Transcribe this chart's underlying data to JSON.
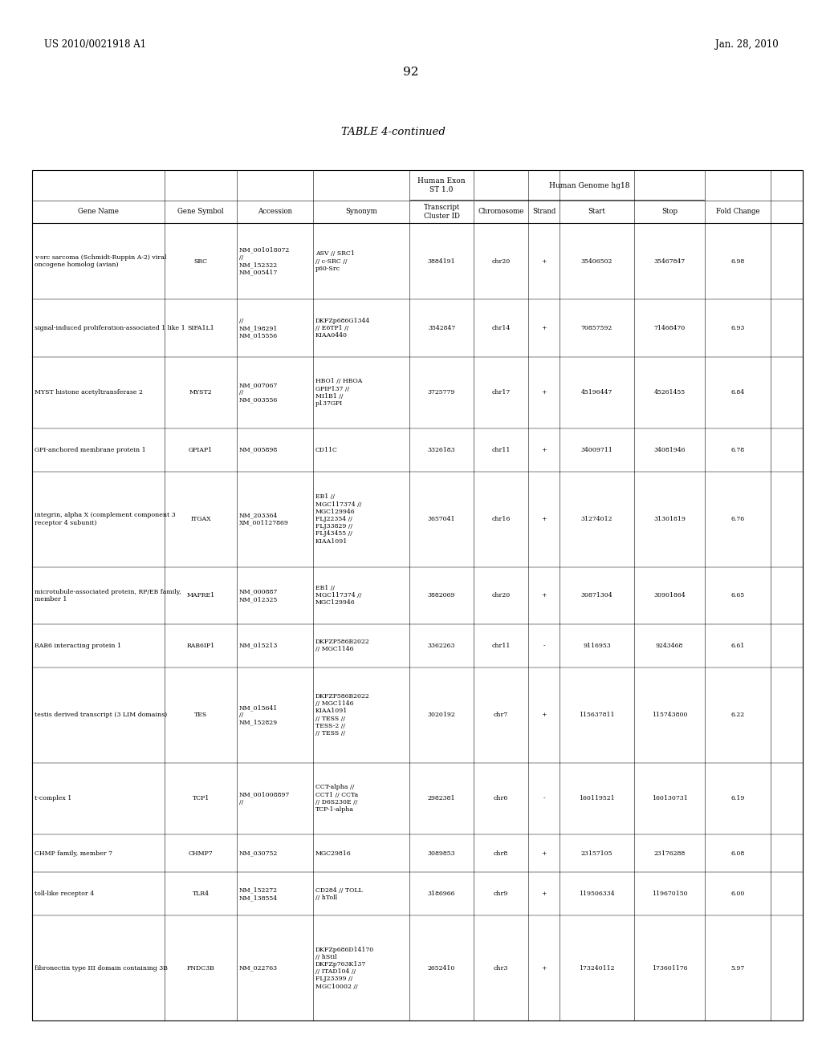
{
  "patent_number": "US 2010/0021918 A1",
  "patent_date": "Jan. 28, 2010",
  "page_number": "92",
  "table_title": "TABLE 4-continued",
  "rows": [
    {
      "gene_name": "v-src sarcoma (Schmidt-Ruppin A-2) viral\noncogene homolog (avian)",
      "gene_symbol": "SRC",
      "accession": "NM_001018072\n//\nNM_152322\nNM_005417",
      "synonym": "ASV // SRC1\n// c-SRC //\np60-Src",
      "transcript_id": "3884191",
      "chromosome": "chr20",
      "strand": "+",
      "start": "35406502",
      "stop": "35467847",
      "fold_change": "6.98"
    },
    {
      "gene_name": "signal-induced proliferation-associated 1 like 1",
      "gene_symbol": "SIPA1L1",
      "accession": "//\nNM_198291\nNM_015556",
      "synonym": "DKFZp686G1344\n// E6TP1 //\nKIAA0440",
      "transcript_id": "3542847",
      "chromosome": "chr14",
      "strand": "+",
      "start": "70857592",
      "stop": "71468470",
      "fold_change": "6.93"
    },
    {
      "gene_name": "MYST histone acetyltransferase 2",
      "gene_symbol": "MYST2",
      "accession": "NM_007067\n//\nNM_003556",
      "synonym": "HBO1 // HBOA\nGPIP137 //\nMI1B1 //\np137GPI",
      "transcript_id": "3725779",
      "chromosome": "chr17",
      "strand": "+",
      "start": "45196447",
      "stop": "45261455",
      "fold_change": "6.84"
    },
    {
      "gene_name": "GPI-anchored membrane protein 1",
      "gene_symbol": "GPIAP1",
      "accession": "NM_005898",
      "synonym": "CD11C",
      "transcript_id": "3326183",
      "chromosome": "chr11",
      "strand": "+",
      "start": "34009711",
      "stop": "34081946",
      "fold_change": "6.78"
    },
    {
      "gene_name": "integrin, alpha X (complement component 3\nreceptor 4 subunit)",
      "gene_symbol": "ITGAX",
      "accession": "NM_203364\nXM_001127869",
      "synonym": "EB1 //\nMGC117374 //\nMGC129946\nFLJ22354 //\nFLJ33829 //\nFLJ43455 //\nKIAA1091",
      "transcript_id": "3657041",
      "chromosome": "chr16",
      "strand": "+",
      "start": "31274012",
      "stop": "31301819",
      "fold_change": "6.76"
    },
    {
      "gene_name": "microtubule-associated protein, RP/EB family,\nmember 1",
      "gene_symbol": "MAPRE1",
      "accession": "NM_000887\nNM_012325",
      "synonym": "EB1 //\nMGC117374 //\nMGC129946",
      "transcript_id": "3882069",
      "chromosome": "chr20",
      "strand": "+",
      "start": "30871304",
      "stop": "30901864",
      "fold_change": "6.65"
    },
    {
      "gene_name": "RAB6 interacting protein 1",
      "gene_symbol": "RAB6IP1",
      "accession": "NM_015213",
      "synonym": "DKFZP586B2022\n// MGC1146",
      "transcript_id": "3362263",
      "chromosome": "chr11",
      "strand": "-",
      "start": "9116953",
      "stop": "9243468",
      "fold_change": "6.61"
    },
    {
      "gene_name": "testis derived transcript (3 LIM domains)",
      "gene_symbol": "TES",
      "accession": "NM_015641\n//\nNM_152829",
      "synonym": "DKFZP586B2022\n// MGC1146\nKIAA1091\n// TESS //\nTESS-2 //\n// TESS //",
      "transcript_id": "3020192",
      "chromosome": "chr7",
      "strand": "+",
      "start": "115637811",
      "stop": "115743800",
      "fold_change": "6.22"
    },
    {
      "gene_name": "t-complex 1",
      "gene_symbol": "TCP1",
      "accession": "NM_001008897\n//",
      "synonym": "CCT-alpha //\nCCT1 // CCTa\n// D6S230E //\nTCP-1-alpha",
      "transcript_id": "2982381",
      "chromosome": "chr6",
      "strand": "-",
      "start": "160119521",
      "stop": "160130731",
      "fold_change": "6.19"
    },
    {
      "gene_name": "CHMP family, member 7",
      "gene_symbol": "CHMP7",
      "accession": "NM_030752",
      "synonym": "MGC29816",
      "transcript_id": "3089853",
      "chromosome": "chr8",
      "strand": "+",
      "start": "23157105",
      "stop": "23176288",
      "fold_change": "6.08"
    },
    {
      "gene_name": "toll-like receptor 4",
      "gene_symbol": "TLR4",
      "accession": "NM_152272\nNM_138554",
      "synonym": "CD284 // TOLL\n// hToll",
      "transcript_id": "3186966",
      "chromosome": "chr9",
      "strand": "+",
      "start": "119506334",
      "stop": "119670150",
      "fold_change": "6.00"
    },
    {
      "gene_name": "fibronectin type III domain containing 3B",
      "gene_symbol": "FNDC3B",
      "accession": "NM_022763",
      "synonym": "DKFZp686D14170\n// hStil\nDKFZp763K137\n// ITAD104 //\nFLJ23399 //\nMGC10002 //",
      "transcript_id": "2652410",
      "chromosome": "chr3",
      "strand": "+",
      "start": "173240112",
      "stop": "173601176",
      "fold_change": "5.97"
    }
  ],
  "col_headers": [
    "Gene Name",
    "Gene Symbol",
    "Accession",
    "Synonym",
    "Transcript\nCluster ID",
    "Chromosome",
    "Strand",
    "Start",
    "Stop",
    "Fold Change"
  ],
  "subheader_exon": "Human Exon\nST 1.0",
  "subheader_genome": "Human Genome hg18"
}
